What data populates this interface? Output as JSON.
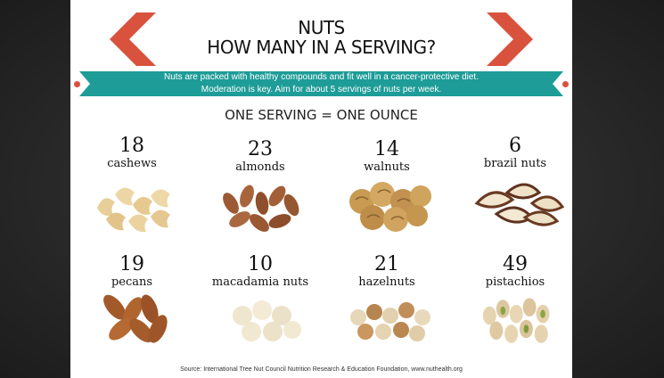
{
  "header": {
    "title_line1": "NUTS",
    "title_line2": "HOW MANY IN A SERVING?"
  },
  "banner": {
    "line1": "Nuts are packed with healthy compounds and fit well in a cancer-protective diet.",
    "line2": "Moderation is key. Aim for about 5 servings of nuts per week."
  },
  "serving_label": "ONE SERVING = ONE OUNCE",
  "nuts": [
    {
      "count": "18",
      "name": "cashews"
    },
    {
      "count": "23",
      "name": "almonds"
    },
    {
      "count": "14",
      "name": "walnuts"
    },
    {
      "count": "6",
      "name": "brazil nuts"
    },
    {
      "count": "19",
      "name": "pecans"
    },
    {
      "count": "10",
      "name": "macadamia nuts"
    },
    {
      "count": "21",
      "name": "hazelnuts"
    },
    {
      "count": "49",
      "name": "pistachios"
    }
  ],
  "source": "Source: International Tree Nut Council Nutrition Research & Education Foundation, www.nuthealth.org",
  "colors": {
    "accent_red": "#d9523d",
    "banner_teal": "#1e9c98"
  }
}
